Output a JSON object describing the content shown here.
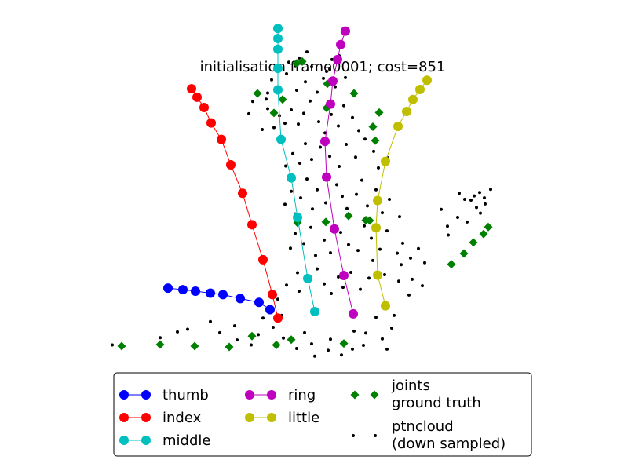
{
  "chart_data": {
    "type": "scatter",
    "title": "initialisation frame0001; cost=851",
    "xlabel": "",
    "ylabel": "",
    "grid": false,
    "axes_visible": false,
    "legend_placement": "bottom-center",
    "series": [
      {
        "name": "thumb",
        "color": "#0000ff",
        "marker": "circle-line",
        "points": [
          [
            -28.6,
            20.0
          ],
          [
            -26.7,
            19.6
          ],
          [
            -25.1,
            19.2
          ],
          [
            -23.2,
            18.7
          ],
          [
            -21.6,
            18.3
          ],
          [
            -19.4,
            17.3
          ],
          [
            -17.0,
            16.3
          ],
          [
            -15.6,
            14.4
          ]
        ]
      },
      {
        "name": "index",
        "color": "#ff0000",
        "marker": "circle-line",
        "points": [
          [
            -14.6,
            12.2
          ],
          [
            -15.3,
            18.3
          ],
          [
            -16.5,
            27.4
          ],
          [
            -17.9,
            36.5
          ],
          [
            -19.1,
            44.7
          ],
          [
            -20.6,
            52.1
          ],
          [
            -21.8,
            58.7
          ],
          [
            -23.1,
            63.0
          ],
          [
            -24.0,
            67.0
          ],
          [
            -24.9,
            69.7
          ],
          [
            -25.6,
            71.9
          ]
        ]
      },
      {
        "name": "middle",
        "color": "#00bfbf",
        "marker": "circle-line",
        "points": [
          [
            -9.9,
            13.9
          ],
          [
            -10.8,
            22.5
          ],
          [
            -12.1,
            38.4
          ],
          [
            -12.9,
            48.7
          ],
          [
            -14.2,
            58.7
          ],
          [
            -14.6,
            71.6
          ],
          [
            -14.6,
            77.2
          ],
          [
            -14.6,
            82.2
          ],
          [
            -14.6,
            85.0
          ],
          [
            -14.6,
            87.6
          ]
        ]
      },
      {
        "name": "ring",
        "color": "#bf00bf",
        "marker": "circle-line",
        "points": [
          [
            -5.0,
            13.3
          ],
          [
            -6.2,
            23.3
          ],
          [
            -7.4,
            35.4
          ],
          [
            -8.4,
            48.9
          ],
          [
            -8.6,
            58.2
          ],
          [
            -7.9,
            67.9
          ],
          [
            -7.6,
            73.9
          ],
          [
            -7.0,
            79.5
          ],
          [
            -6.6,
            83.4
          ],
          [
            -6.0,
            86.9
          ]
        ]
      },
      {
        "name": "little",
        "color": "#bfbf00",
        "marker": "circle-line",
        "points": [
          [
            -0.9,
            15.4
          ],
          [
            -1.9,
            23.4
          ],
          [
            -2.1,
            35.7
          ],
          [
            -1.9,
            42.8
          ],
          [
            -0.9,
            53.0
          ],
          [
            0.7,
            62.1
          ],
          [
            1.8,
            66.0
          ],
          [
            2.6,
            69.1
          ],
          [
            3.5,
            71.7
          ],
          [
            4.4,
            74.1
          ]
        ]
      },
      {
        "name": "joints\nground truth",
        "color": "#008000",
        "marker": "diamond",
        "points": [
          [
            -34.5,
            4.9
          ],
          [
            -29.6,
            5.3
          ],
          [
            -25.2,
            4.9
          ],
          [
            -20.8,
            4.7
          ],
          [
            -17.9,
            7.5
          ],
          [
            -14.8,
            5.2
          ],
          [
            -12.9,
            6.6
          ],
          [
            -6.2,
            5.6
          ],
          [
            -8.5,
            37.2
          ],
          [
            -5.6,
            38.8
          ],
          [
            -3.4,
            37.7
          ],
          [
            -12.1,
            37.0
          ],
          [
            -15.1,
            65.6
          ],
          [
            -14.0,
            69.1
          ],
          [
            -17.2,
            70.7
          ],
          [
            -8.3,
            73.2
          ],
          [
            -12.2,
            78.5
          ],
          [
            -2.2,
            58.4
          ],
          [
            -2.5,
            62.0
          ],
          [
            -1.7,
            65.7
          ],
          [
            -8.4,
            66.9
          ],
          [
            -4.9,
            70.7
          ],
          [
            7.5,
            26.2
          ],
          [
            9.1,
            29.0
          ],
          [
            10.3,
            31.9
          ],
          [
            11.6,
            34.1
          ],
          [
            12.2,
            35.9
          ],
          [
            -2.9,
            37.6
          ],
          [
            -11.5,
            79.0
          ]
        ]
      },
      {
        "name": "ptncloud\n(down sampled)",
        "color": "#000000",
        "marker": "dot",
        "points": [
          [
            -35.7,
            5.2
          ],
          [
            -29.6,
            7.1
          ],
          [
            -27.4,
            8.6
          ],
          [
            -26.1,
            9.3
          ],
          [
            -23.2,
            11.3
          ],
          [
            -22.0,
            8.4
          ],
          [
            -20.1,
            10.2
          ],
          [
            -19.8,
            6.5
          ],
          [
            -18.0,
            5.2
          ],
          [
            -17.1,
            7.9
          ],
          [
            -16.5,
            12.2
          ],
          [
            -15.2,
            9.8
          ],
          [
            -14.1,
            12.9
          ],
          [
            -13.9,
            7.0
          ],
          [
            -12.2,
            4.3
          ],
          [
            -11.2,
            8.4
          ],
          [
            -10.3,
            5.5
          ],
          [
            -9.9,
            2.3
          ],
          [
            -8.2,
            3.8
          ],
          [
            -7.9,
            6.7
          ],
          [
            -6.5,
            2.6
          ],
          [
            -5.1,
            4.1
          ],
          [
            -4.9,
            8.8
          ],
          [
            -3.7,
            5.1
          ],
          [
            -3.4,
            8.3
          ],
          [
            -2.1,
            12.4
          ],
          [
            -1.3,
            6.8
          ],
          [
            -0.7,
            4.1
          ],
          [
            -0.1,
            9.6
          ],
          [
            0.2,
            12.9
          ],
          [
            -14.6,
            17.1
          ],
          [
            -13.5,
            20.8
          ],
          [
            -12.1,
            24.0
          ],
          [
            -11.9,
            19.2
          ],
          [
            -10.5,
            22.1
          ],
          [
            -9.6,
            25.0
          ],
          [
            -8.7,
            21.1
          ],
          [
            -7.8,
            18.6
          ],
          [
            -6.9,
            22.9
          ],
          [
            -6.3,
            20.2
          ],
          [
            -5.3,
            24.1
          ],
          [
            -4.1,
            19.7
          ],
          [
            -3.0,
            22.6
          ],
          [
            -2.5,
            27.2
          ],
          [
            -1.0,
            23.5
          ],
          [
            0.8,
            21.8
          ],
          [
            1.1,
            26.1
          ],
          [
            2.1,
            18.2
          ],
          [
            2.5,
            22.3
          ],
          [
            3.8,
            20.6
          ],
          [
            -13.0,
            30.4
          ],
          [
            -12.4,
            34.2
          ],
          [
            -11.3,
            31.6
          ],
          [
            -10.4,
            35.8
          ],
          [
            -9.8,
            28.5
          ],
          [
            -8.7,
            32.5
          ],
          [
            -7.9,
            29.2
          ],
          [
            -6.6,
            34.5
          ],
          [
            -5.6,
            31.3
          ],
          [
            -4.4,
            29.8
          ],
          [
            -3.6,
            36.2
          ],
          [
            -2.7,
            33.0
          ],
          [
            -1.6,
            30.1
          ],
          [
            -0.7,
            34.9
          ],
          [
            0.6,
            29.1
          ],
          [
            1.3,
            31.7
          ],
          [
            2.3,
            27.8
          ],
          [
            3.3,
            30.3
          ],
          [
            4.1,
            26.6
          ],
          [
            -13.7,
            41.8
          ],
          [
            -12.9,
            45.2
          ],
          [
            -12.4,
            39.3
          ],
          [
            -11.7,
            43.5
          ],
          [
            -10.9,
            48.4
          ],
          [
            -10.2,
            40.6
          ],
          [
            -9.6,
            45.6
          ],
          [
            -8.5,
            42.2
          ],
          [
            -7.1,
            46.9
          ],
          [
            -6.4,
            43.9
          ],
          [
            -5.8,
            40.7
          ],
          [
            -4.6,
            44.4
          ],
          [
            -3.9,
            48.1
          ],
          [
            -3.2,
            41.4
          ],
          [
            -2.1,
            45.6
          ],
          [
            -1.3,
            39.6
          ],
          [
            -0.4,
            43.1
          ],
          [
            0.9,
            38.6
          ],
          [
            7.0,
            36.1
          ],
          [
            8.3,
            38.4
          ],
          [
            9.5,
            37.2
          ],
          [
            10.7,
            41.0
          ],
          [
            11.2,
            39.5
          ],
          [
            10.0,
            42.9
          ],
          [
            11.8,
            41.9
          ],
          [
            -13.6,
            51.8
          ],
          [
            -12.7,
            55.0
          ],
          [
            -11.8,
            52.5
          ],
          [
            -11.1,
            57.6
          ],
          [
            -10.3,
            53.5
          ],
          [
            -9.2,
            56.7
          ],
          [
            -8.0,
            54.3
          ],
          [
            -6.8,
            51.7
          ],
          [
            -5.9,
            57.4
          ],
          [
            -4.7,
            54.1
          ],
          [
            -3.5,
            58.8
          ],
          [
            -2.4,
            55.6
          ],
          [
            -1.8,
            51.3
          ],
          [
            -0.6,
            53.9
          ],
          [
            -15.1,
            61.8
          ],
          [
            -14.4,
            64.9
          ],
          [
            -13.7,
            62.9
          ],
          [
            -12.9,
            66.4
          ],
          [
            -12.0,
            62.7
          ],
          [
            -11.3,
            65.5
          ],
          [
            -10.5,
            68.7
          ],
          [
            -9.4,
            63.3
          ],
          [
            -8.6,
            60.4
          ],
          [
            -7.8,
            65.2
          ],
          [
            -6.9,
            62.2
          ],
          [
            -6.2,
            67.5
          ],
          [
            -5.1,
            64.4
          ],
          [
            -4.3,
            61.0
          ],
          [
            -15.9,
            70.8
          ],
          [
            -15.4,
            74.2
          ],
          [
            -14.6,
            72.1
          ],
          [
            -13.5,
            75.8
          ],
          [
            -12.2,
            71.5
          ],
          [
            -11.1,
            73.7
          ],
          [
            -10.3,
            77.6
          ],
          [
            -9.6,
            71.0
          ],
          [
            -8.8,
            74.6
          ],
          [
            -8.0,
            77.0
          ],
          [
            -7.3,
            72.4
          ],
          [
            -6.8,
            80.5
          ],
          [
            -11.9,
            79.9
          ],
          [
            -10.9,
            81.5
          ],
          [
            -7.7,
            79.5
          ],
          [
            -8.4,
            76.4
          ],
          [
            -6.0,
            74.8
          ],
          [
            -13.2,
            78.8
          ],
          [
            -12.4,
            77.7
          ],
          [
            6.2,
            40.5
          ],
          [
            8.5,
            44.7
          ],
          [
            9.2,
            43.1
          ],
          [
            10.4,
            44.0
          ],
          [
            11.1,
            44.9
          ],
          [
            11.7,
            43.5
          ],
          [
            12.5,
            45.7
          ],
          [
            7.1,
            33.8
          ],
          [
            -16.6,
            61.3
          ],
          [
            -18.3,
            65.4
          ],
          [
            -17.8,
            68.6
          ],
          [
            -16.1,
            69.2
          ],
          [
            -15.9,
            66.7
          ]
        ]
      }
    ],
    "legend": {
      "entries": [
        "thumb",
        "index",
        "middle",
        "ring",
        "little",
        "joints\nground truth",
        "ptncloud\n(down sampled)"
      ]
    },
    "xlim": [
      -40,
      20
    ],
    "ylim": [
      0,
      95
    ]
  }
}
